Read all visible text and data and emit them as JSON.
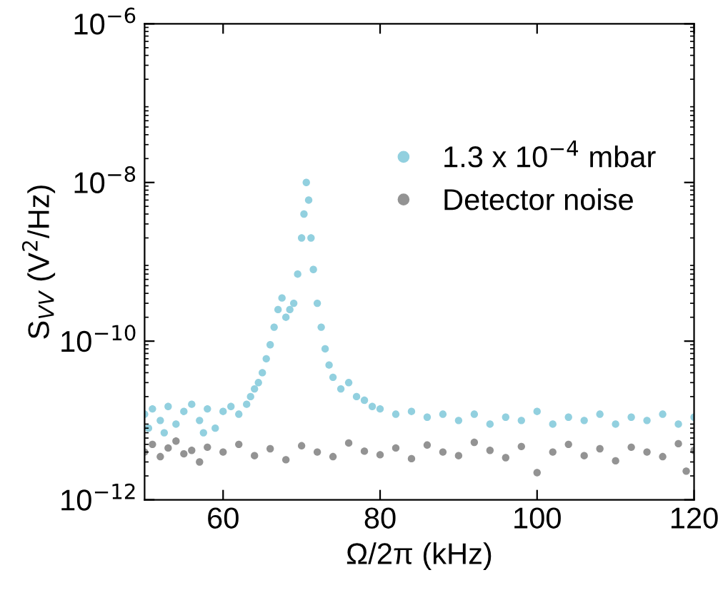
{
  "chart_data": {
    "type": "scatter",
    "xlabel": "Ω/2π (kHz)",
    "ylabel": "S$_{VV}$ (V$^{2}$/Hz)",
    "log": "y",
    "xlim": [
      50,
      120
    ],
    "ylim": [
      1e-12,
      1e-06
    ],
    "xticks": [
      60,
      80,
      100,
      120
    ],
    "yticks": [
      {
        "value": 1e-12,
        "label": "10$^{−12}$"
      },
      {
        "value": 1e-10,
        "label": "10$^{−10}$"
      },
      {
        "value": 1e-08,
        "label": "10$^{−8}$"
      },
      {
        "value": 1e-06,
        "label": "10$^{−6}$"
      }
    ],
    "grid": false,
    "legend": "top right",
    "marker": "circle",
    "series": [
      {
        "name": "1.3 x 10$^{−4}$ mbar",
        "color": "#92d0df",
        "x": [
          50,
          50.5,
          51,
          52,
          52.5,
          53,
          54,
          55,
          56,
          57,
          57.5,
          58,
          59,
          60,
          61,
          62,
          63,
          63.5,
          64,
          64.5,
          65,
          65.5,
          66,
          66.5,
          67,
          67.5,
          68,
          68.5,
          69,
          69.5,
          70,
          70.3,
          70.6,
          70.9,
          71.2,
          71.5,
          72,
          72.5,
          73,
          73.5,
          74,
          75,
          76,
          77,
          78,
          79,
          80,
          82,
          84,
          86,
          88,
          90,
          92,
          94,
          96,
          98,
          100,
          102,
          104,
          106,
          108,
          110,
          112,
          114,
          116,
          118,
          120
        ],
        "values": [
          1.2e-11,
          8e-12,
          1.4e-11,
          1e-11,
          7e-12,
          1.5e-11,
          9e-12,
          1.3e-11,
          1.6e-11,
          1e-11,
          7e-12,
          1.4e-11,
          8e-12,
          1.3e-11,
          1.5e-11,
          1.2e-11,
          1.6e-11,
          2e-11,
          2.5e-11,
          3e-11,
          4e-11,
          6e-11,
          9e-11,
          1.5e-10,
          2.5e-10,
          3.5e-10,
          2e-10,
          2.5e-10,
          3e-10,
          7e-10,
          2e-09,
          4e-09,
          1e-08,
          6e-09,
          2e-09,
          8e-10,
          3e-10,
          1.5e-10,
          8e-11,
          5e-11,
          3.5e-11,
          2.5e-11,
          3e-11,
          2e-11,
          1.8e-11,
          1.5e-11,
          1.4e-11,
          1.2e-11,
          1.3e-11,
          1.1e-11,
          1.2e-11,
          1e-11,
          1.2e-11,
          9e-12,
          1.1e-11,
          1e-11,
          1.3e-11,
          9e-12,
          1.1e-11,
          1e-11,
          1.2e-11,
          9e-12,
          1.1e-11,
          1e-11,
          1.2e-11,
          9e-12,
          1.1e-11
        ]
      },
      {
        "name": "Detector noise",
        "color": "#939393",
        "x": [
          50,
          51,
          52,
          53,
          54,
          55,
          56,
          57,
          58,
          60,
          62,
          64,
          66,
          68,
          70,
          72,
          74,
          76,
          78,
          80,
          82,
          84,
          86,
          88,
          90,
          92,
          94,
          96,
          98,
          100,
          102,
          104,
          106,
          108,
          110,
          112,
          114,
          116,
          118,
          119,
          120
        ],
        "values": [
          4e-12,
          5e-12,
          3.5e-12,
          4.5e-12,
          5.5e-12,
          3.8e-12,
          4.2e-12,
          3e-12,
          4.6e-12,
          4e-12,
          5e-12,
          3.6e-12,
          4.4e-12,
          3.2e-12,
          4.8e-12,
          4e-12,
          3.5e-12,
          5.2e-12,
          4.1e-12,
          3.7e-12,
          4.5e-12,
          3.3e-12,
          4.9e-12,
          4e-12,
          3.6e-12,
          5.3e-12,
          4.2e-12,
          3.4e-12,
          4.7e-12,
          2.2e-12,
          4e-12,
          5e-12,
          3.6e-12,
          4.4e-12,
          3.1e-12,
          4.6e-12,
          4e-12,
          3.5e-12,
          5.1e-12,
          2.3e-12,
          4.2e-12
        ]
      }
    ]
  }
}
